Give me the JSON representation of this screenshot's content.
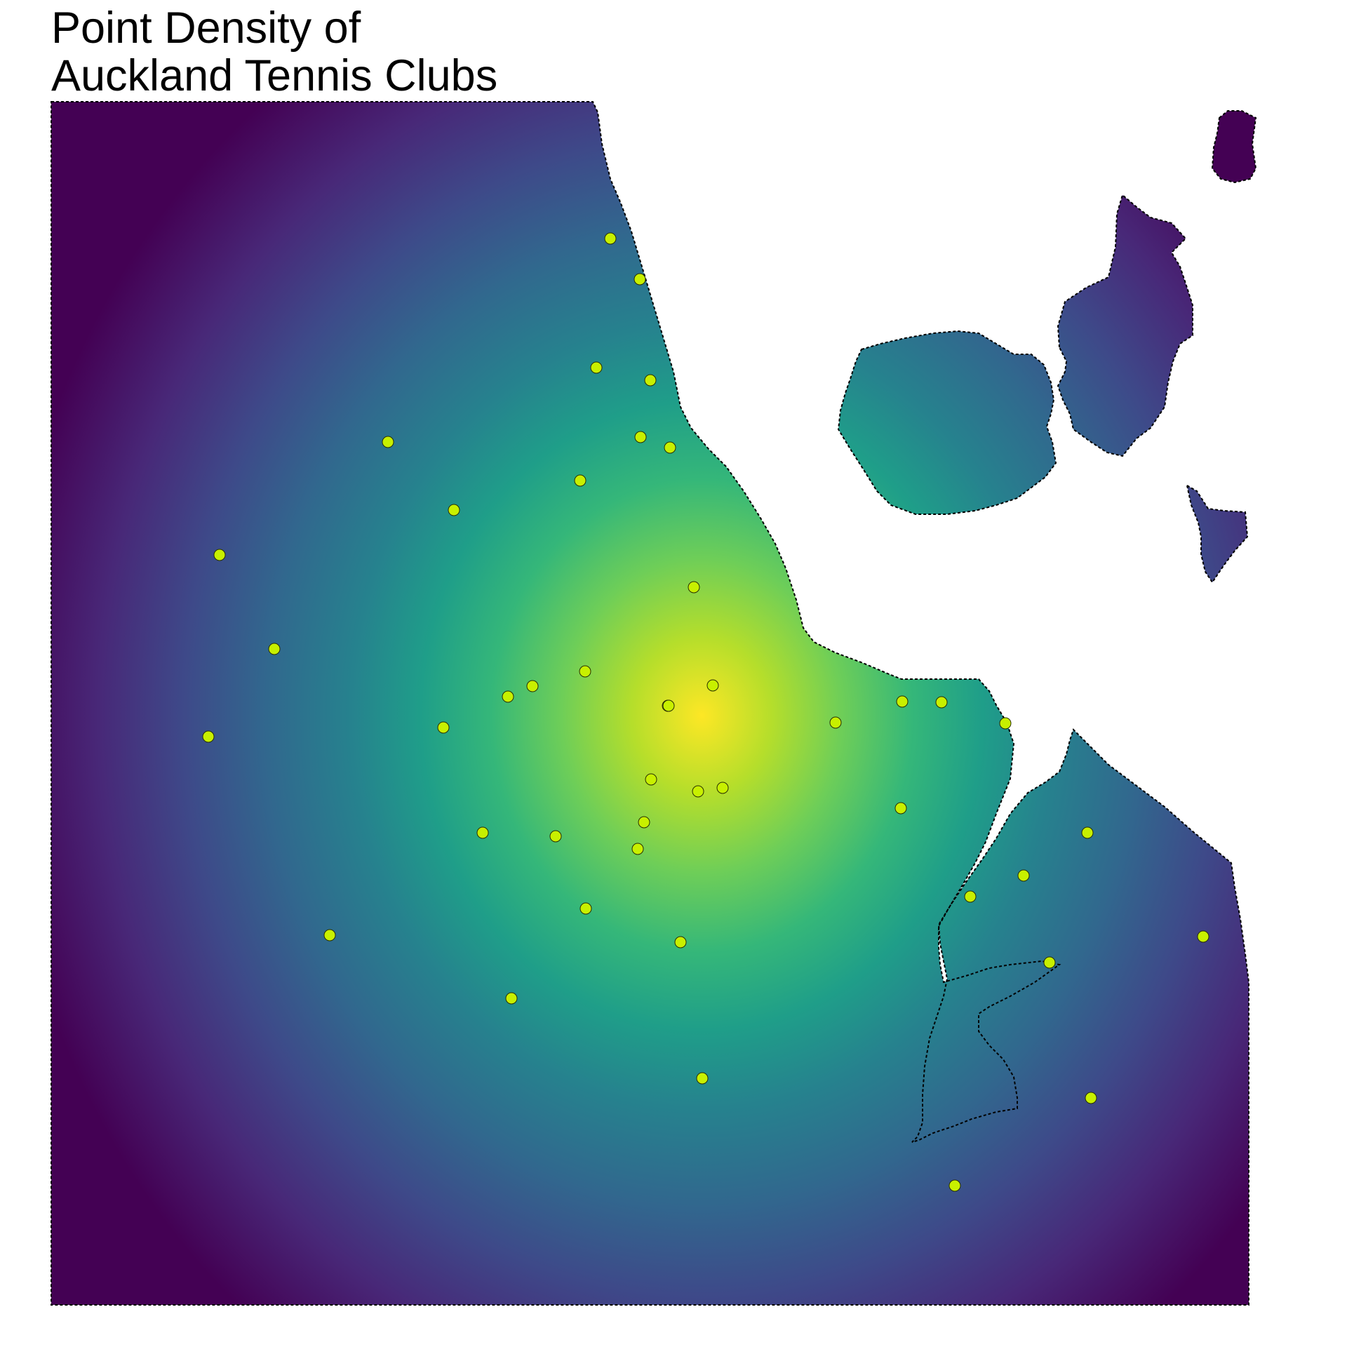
{
  "title": {
    "line1": "Point Density of",
    "line2": "Auckland Tennis Clubs"
  },
  "colors": {
    "scale": [
      "#440154",
      "#482878",
      "#3e4989",
      "#31688e",
      "#26828e",
      "#1f9e89",
      "#35b779",
      "#6ece58",
      "#b5de2b",
      "#fde725"
    ],
    "point_fill": "#c8f000",
    "point_stroke": "#2a3000",
    "coast_line": "#000000",
    "water": "#ffffff"
  },
  "legend": {
    "shown": false
  },
  "club_count": 46
}
